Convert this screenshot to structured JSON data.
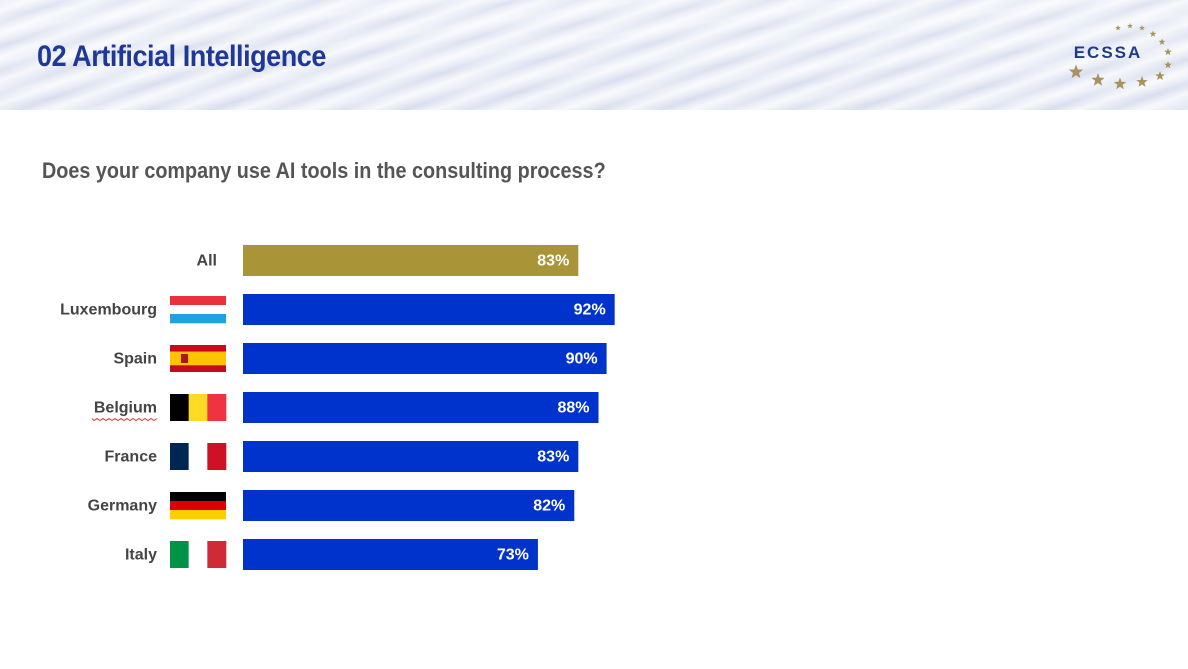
{
  "header": {
    "title": "02 Artificial Intelligence",
    "logo_text": "ECSSA"
  },
  "question": "Does your company use AI tools in the consulting process?",
  "colors": {
    "title": "#1e3799",
    "overall_bar": "#a99538",
    "country_bar": "#0033cc",
    "logo_star": "#a8935f",
    "logo_text": "#1e3a8a"
  },
  "chart_data": {
    "type": "bar",
    "orientation": "horizontal",
    "categories": [
      "All",
      "Luxembourg",
      "Spain",
      "Belgium",
      "France",
      "Germany",
      "Italy"
    ],
    "values": [
      83,
      92,
      90,
      88,
      83,
      82,
      73
    ],
    "value_labels": [
      "83%",
      "92%",
      "90%",
      "88%",
      "83%",
      "82%",
      "73%"
    ],
    "flags": [
      "",
      "luxembourg-flag",
      "spain-flag",
      "belgium-flag",
      "france-flag",
      "germany-flag",
      "italy-flag"
    ],
    "bar_colors": [
      "#a99538",
      "#0033cc",
      "#0033cc",
      "#0033cc",
      "#0033cc",
      "#0033cc",
      "#0033cc"
    ],
    "xlim": [
      0,
      100
    ],
    "grid": false,
    "legend": "none"
  }
}
